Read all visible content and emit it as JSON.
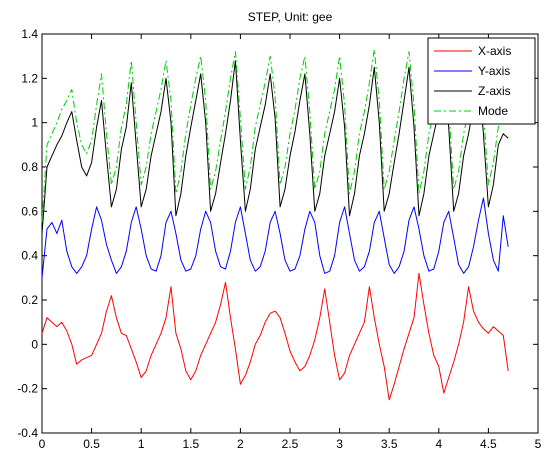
{
  "chart_data": {
    "type": "line",
    "title": "STEP, Unit: gee",
    "xlabel": "",
    "ylabel": "",
    "xlim": [
      0,
      5
    ],
    "ylim": [
      -0.4,
      1.4
    ],
    "xticks": [
      0,
      0.5,
      1,
      1.5,
      2,
      2.5,
      3,
      3.5,
      4,
      4.5,
      5
    ],
    "xtick_labels": [
      "0",
      "0.5",
      "1",
      "1.5",
      "2",
      "2.5",
      "3",
      "3.5",
      "4",
      "4.5",
      "5"
    ],
    "yticks": [
      -0.4,
      -0.2,
      0,
      0.2,
      0.4,
      0.6,
      0.8,
      1,
      1.2,
      1.4
    ],
    "ytick_labels": [
      "-0.4",
      "-0.2",
      "0",
      "0.2",
      "0.4",
      "0.6",
      "0.8",
      "1",
      "1.2",
      "1.4"
    ],
    "grid": false,
    "legend_position": "top-right",
    "series": [
      {
        "name": "X-axis",
        "color": "#ff0000",
        "dash": "solid",
        "x": [
          0,
          0.05,
          0.1,
          0.15,
          0.2,
          0.25,
          0.3,
          0.35,
          0.4,
          0.45,
          0.5,
          0.55,
          0.6,
          0.65,
          0.7,
          0.75,
          0.8,
          0.85,
          0.9,
          0.95,
          1.0,
          1.05,
          1.1,
          1.15,
          1.2,
          1.25,
          1.3,
          1.35,
          1.4,
          1.45,
          1.5,
          1.55,
          1.6,
          1.65,
          1.7,
          1.75,
          1.8,
          1.85,
          1.9,
          1.95,
          2.0,
          2.05,
          2.1,
          2.15,
          2.2,
          2.25,
          2.3,
          2.35,
          2.4,
          2.45,
          2.5,
          2.55,
          2.6,
          2.65,
          2.7,
          2.75,
          2.8,
          2.85,
          2.9,
          2.95,
          3.0,
          3.05,
          3.1,
          3.15,
          3.2,
          3.25,
          3.3,
          3.35,
          3.4,
          3.45,
          3.5,
          3.55,
          3.6,
          3.65,
          3.7,
          3.75,
          3.8,
          3.85,
          3.9,
          3.95,
          4.0,
          4.05,
          4.1,
          4.15,
          4.2,
          4.25,
          4.3,
          4.35,
          4.4,
          4.45,
          4.5,
          4.55,
          4.6,
          4.65,
          4.7
        ],
        "y": [
          0.05,
          0.12,
          0.1,
          0.08,
          0.1,
          0.06,
          0.0,
          -0.09,
          -0.07,
          -0.06,
          -0.05,
          0.0,
          0.05,
          0.15,
          0.22,
          0.12,
          0.05,
          0.04,
          -0.02,
          -0.08,
          -0.15,
          -0.12,
          -0.05,
          0.0,
          0.05,
          0.12,
          0.26,
          0.05,
          -0.02,
          -0.12,
          -0.16,
          -0.12,
          -0.05,
          0.0,
          0.05,
          0.1,
          0.18,
          0.28,
          0.12,
          -0.02,
          -0.18,
          -0.14,
          -0.08,
          0.0,
          0.04,
          0.1,
          0.14,
          0.15,
          0.12,
          0.05,
          -0.03,
          -0.08,
          -0.12,
          -0.1,
          -0.05,
          0.02,
          0.12,
          0.25,
          0.1,
          -0.05,
          -0.16,
          -0.13,
          -0.05,
          0.0,
          0.05,
          0.1,
          0.26,
          0.12,
          0.0,
          -0.1,
          -0.25,
          -0.18,
          -0.1,
          -0.02,
          0.05,
          0.12,
          0.32,
          0.18,
          0.05,
          -0.05,
          -0.1,
          -0.22,
          -0.15,
          -0.08,
          0.0,
          0.1,
          0.26,
          0.15,
          0.1,
          0.07,
          0.05,
          0.08,
          0.06,
          0.04,
          -0.12
        ]
      },
      {
        "name": "Y-axis",
        "color": "#0000ff",
        "dash": "solid",
        "x": [
          0,
          0.05,
          0.1,
          0.15,
          0.2,
          0.25,
          0.3,
          0.35,
          0.4,
          0.45,
          0.5,
          0.55,
          0.6,
          0.65,
          0.7,
          0.75,
          0.8,
          0.85,
          0.9,
          0.95,
          1.0,
          1.05,
          1.1,
          1.15,
          1.2,
          1.25,
          1.3,
          1.35,
          1.4,
          1.45,
          1.5,
          1.55,
          1.6,
          1.65,
          1.7,
          1.75,
          1.8,
          1.85,
          1.9,
          1.95,
          2.0,
          2.05,
          2.1,
          2.15,
          2.2,
          2.25,
          2.3,
          2.35,
          2.4,
          2.45,
          2.5,
          2.55,
          2.6,
          2.65,
          2.7,
          2.75,
          2.8,
          2.85,
          2.9,
          2.95,
          3.0,
          3.05,
          3.1,
          3.15,
          3.2,
          3.25,
          3.3,
          3.35,
          3.4,
          3.45,
          3.5,
          3.55,
          3.6,
          3.65,
          3.7,
          3.75,
          3.8,
          3.85,
          3.9,
          3.95,
          4.0,
          4.05,
          4.1,
          4.15,
          4.2,
          4.25,
          4.3,
          4.35,
          4.4,
          4.45,
          4.5,
          4.55,
          4.6,
          4.65,
          4.7
        ],
        "y": [
          0.3,
          0.52,
          0.55,
          0.5,
          0.56,
          0.42,
          0.35,
          0.32,
          0.35,
          0.4,
          0.52,
          0.62,
          0.56,
          0.45,
          0.38,
          0.32,
          0.35,
          0.42,
          0.55,
          0.62,
          0.52,
          0.4,
          0.34,
          0.33,
          0.4,
          0.55,
          0.6,
          0.5,
          0.38,
          0.33,
          0.34,
          0.4,
          0.52,
          0.6,
          0.55,
          0.42,
          0.35,
          0.34,
          0.42,
          0.55,
          0.62,
          0.5,
          0.38,
          0.33,
          0.35,
          0.42,
          0.55,
          0.6,
          0.5,
          0.38,
          0.33,
          0.34,
          0.4,
          0.52,
          0.6,
          0.55,
          0.4,
          0.32,
          0.33,
          0.4,
          0.55,
          0.62,
          0.5,
          0.38,
          0.33,
          0.35,
          0.42,
          0.55,
          0.6,
          0.48,
          0.36,
          0.32,
          0.35,
          0.42,
          0.56,
          0.62,
          0.52,
          0.4,
          0.33,
          0.34,
          0.42,
          0.55,
          0.6,
          0.48,
          0.36,
          0.32,
          0.35,
          0.44,
          0.56,
          0.66,
          0.5,
          0.38,
          0.33,
          0.58,
          0.44
        ]
      },
      {
        "name": "Z-axis",
        "color": "#000000",
        "dash": "solid",
        "x": [
          0,
          0.05,
          0.1,
          0.15,
          0.2,
          0.25,
          0.3,
          0.35,
          0.4,
          0.45,
          0.5,
          0.55,
          0.6,
          0.65,
          0.7,
          0.75,
          0.8,
          0.85,
          0.9,
          0.95,
          1.0,
          1.05,
          1.1,
          1.15,
          1.2,
          1.25,
          1.3,
          1.35,
          1.4,
          1.45,
          1.5,
          1.55,
          1.6,
          1.65,
          1.7,
          1.75,
          1.8,
          1.85,
          1.9,
          1.95,
          2.0,
          2.05,
          2.1,
          2.15,
          2.2,
          2.25,
          2.3,
          2.35,
          2.4,
          2.45,
          2.5,
          2.55,
          2.6,
          2.65,
          2.7,
          2.75,
          2.8,
          2.85,
          2.9,
          2.95,
          3.0,
          3.05,
          3.1,
          3.15,
          3.2,
          3.25,
          3.3,
          3.35,
          3.4,
          3.45,
          3.5,
          3.55,
          3.6,
          3.65,
          3.7,
          3.75,
          3.8,
          3.85,
          3.9,
          3.95,
          4.0,
          4.05,
          4.1,
          4.15,
          4.2,
          4.25,
          4.3,
          4.35,
          4.4,
          4.45,
          4.5,
          4.55,
          4.6,
          4.65,
          4.7
        ],
        "y": [
          0.5,
          0.8,
          0.85,
          0.9,
          0.94,
          1.0,
          1.05,
          0.92,
          0.8,
          0.76,
          0.82,
          0.98,
          1.1,
          0.85,
          0.62,
          0.7,
          0.88,
          0.98,
          1.18,
          0.9,
          0.62,
          0.7,
          0.85,
          0.95,
          1.05,
          1.2,
          1.0,
          0.58,
          0.68,
          0.85,
          0.98,
          1.1,
          1.22,
          1.0,
          0.6,
          0.68,
          0.82,
          0.95,
          1.1,
          1.28,
          0.92,
          0.6,
          0.7,
          0.88,
          0.98,
          1.08,
          1.22,
          1.02,
          0.62,
          0.7,
          0.85,
          0.96,
          1.1,
          1.22,
          0.95,
          0.6,
          0.68,
          0.85,
          0.95,
          1.05,
          1.2,
          0.98,
          0.58,
          0.68,
          0.85,
          0.95,
          1.08,
          1.25,
          1.0,
          0.6,
          0.68,
          0.82,
          0.95,
          1.1,
          1.25,
          0.98,
          0.58,
          0.68,
          0.85,
          0.95,
          1.05,
          1.22,
          0.98,
          0.6,
          0.68,
          0.85,
          0.95,
          1.08,
          1.22,
          0.95,
          0.62,
          0.72,
          0.9,
          0.95,
          0.93
        ]
      },
      {
        "name": "Mode",
        "color": "#00cc00",
        "dash": "dashdot",
        "x": [
          0,
          0.05,
          0.1,
          0.15,
          0.2,
          0.25,
          0.3,
          0.35,
          0.4,
          0.45,
          0.5,
          0.55,
          0.6,
          0.65,
          0.7,
          0.75,
          0.8,
          0.85,
          0.9,
          0.95,
          1.0,
          1.05,
          1.1,
          1.15,
          1.2,
          1.25,
          1.3,
          1.35,
          1.4,
          1.45,
          1.5,
          1.55,
          1.6,
          1.65,
          1.7,
          1.75,
          1.8,
          1.85,
          1.9,
          1.95,
          2.0,
          2.05,
          2.1,
          2.15,
          2.2,
          2.25,
          2.3,
          2.35,
          2.4,
          2.45,
          2.5,
          2.55,
          2.6,
          2.65,
          2.7,
          2.75,
          2.8,
          2.85,
          2.9,
          2.95,
          3.0,
          3.05,
          3.1,
          3.15,
          3.2,
          3.25,
          3.3,
          3.35,
          3.4,
          3.45,
          3.5,
          3.55,
          3.6,
          3.65,
          3.7,
          3.75,
          3.8,
          3.85,
          3.9,
          3.95,
          4.0,
          4.05,
          4.1,
          4.15,
          4.2,
          4.25,
          4.3,
          4.35,
          4.4,
          4.45,
          4.5,
          4.55,
          4.6,
          4.65,
          4.7
        ],
        "y": [
          0.55,
          0.9,
          0.95,
          1.0,
          1.06,
          1.1,
          1.15,
          1.0,
          0.9,
          0.86,
          0.92,
          1.08,
          1.22,
          0.95,
          0.72,
          0.8,
          0.98,
          1.08,
          1.28,
          1.0,
          0.72,
          0.8,
          0.95,
          1.05,
          1.15,
          1.28,
          1.1,
          0.68,
          0.78,
          0.95,
          1.08,
          1.2,
          1.3,
          1.1,
          0.7,
          0.78,
          0.92,
          1.05,
          1.2,
          1.32,
          1.02,
          0.7,
          0.8,
          0.98,
          1.08,
          1.18,
          1.3,
          1.12,
          0.72,
          0.8,
          0.95,
          1.06,
          1.2,
          1.3,
          1.05,
          0.7,
          0.78,
          0.95,
          1.05,
          1.15,
          1.3,
          1.08,
          0.68,
          0.78,
          0.95,
          1.05,
          1.18,
          1.33,
          1.1,
          0.7,
          0.78,
          0.92,
          1.05,
          1.2,
          1.32,
          1.08,
          0.68,
          0.78,
          0.95,
          1.05,
          1.15,
          1.3,
          1.08,
          0.7,
          0.78,
          0.95,
          1.05,
          1.18,
          1.3,
          1.05,
          0.72,
          0.82,
          0.98,
          1.02,
          1.0
        ]
      }
    ]
  }
}
